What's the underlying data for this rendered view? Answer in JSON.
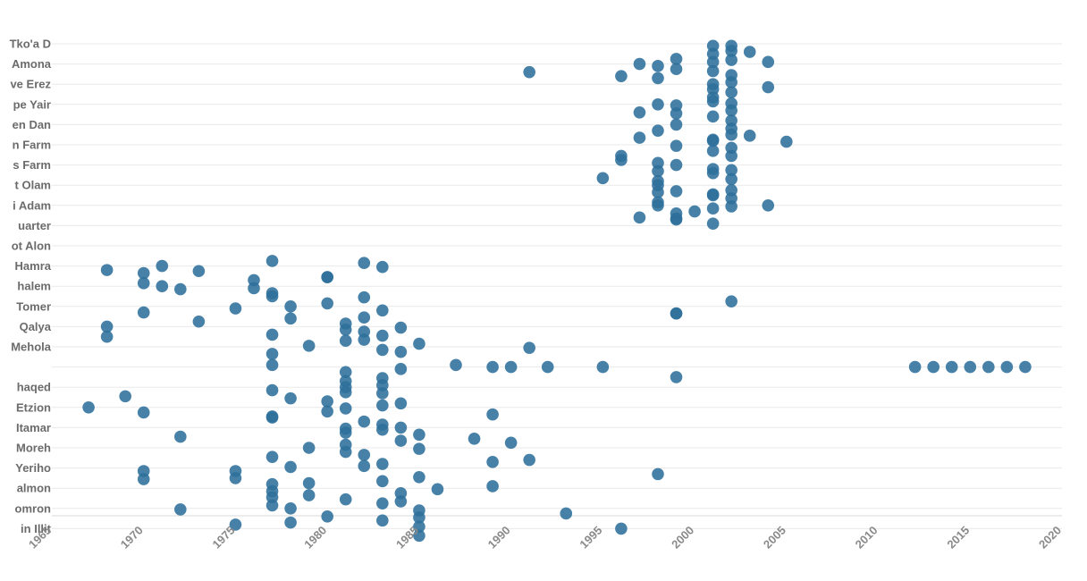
{
  "chart_data": {
    "type": "scatter",
    "xlim": [
      1965,
      2020
    ],
    "xticks": [
      "1965",
      "1970",
      "1975",
      "1980",
      "1985",
      "1990",
      "1995",
      "2000",
      "2005",
      "2010",
      "2015",
      "2020"
    ],
    "grid": true,
    "marker_color": "#2e6f9b",
    "categories": [
      "Tko'a D",
      "Amona",
      "ve Erez",
      "pe Yair",
      "en Dan",
      "n Farm",
      "s Farm",
      "t Olam",
      "i Adam",
      "uarter",
      "ot Alon",
      "Hamra",
      "halem",
      "Tomer",
      "Qalya",
      "Mehola",
      "",
      "haqed",
      "Etzion",
      "Itamar",
      "Moreh",
      "Yeriho",
      "almon",
      "omron",
      "in Illit"
    ],
    "points": [
      [
        "Tko'a D",
        2001,
        0.1
      ],
      [
        "Tko'a D",
        2002,
        0.1
      ],
      [
        "Tko'a D",
        2001,
        0.5
      ],
      [
        "Tko'a D",
        2002,
        0.35
      ],
      [
        "Tko'a D",
        2003,
        0.4
      ],
      [
        "Tko'a D",
        1999,
        0.75
      ],
      [
        "Tko'a D",
        2001,
        0.9
      ],
      [
        "Tko'a D",
        2002,
        0.8
      ],
      [
        "Amona",
        1997,
        0.0
      ],
      [
        "Amona",
        1998,
        0.1
      ],
      [
        "Amona",
        1999,
        0.25
      ],
      [
        "Amona",
        2004,
        -0.1
      ],
      [
        "Amona",
        2001,
        0.35
      ],
      [
        "ve Erez",
        1991,
        -0.6
      ],
      [
        "ve Erez",
        1996,
        -0.4
      ],
      [
        "ve Erez",
        1998,
        -0.3
      ],
      [
        "ve Erez",
        2002,
        -0.45
      ],
      [
        "ve Erez",
        2002,
        -0.1
      ],
      [
        "ve Erez",
        2001,
        0.0
      ],
      [
        "ve Erez",
        2004,
        0.15
      ],
      [
        "ve Erez",
        2001,
        0.25
      ],
      [
        "ve Erez",
        2002,
        0.4
      ],
      [
        "ve Erez",
        2001,
        0.65
      ],
      [
        "pe Yair",
        2001,
        -0.15
      ],
      [
        "pe Yair",
        2002,
        -0.05
      ],
      [
        "pe Yair",
        1998,
        0.0
      ],
      [
        "pe Yair",
        1999,
        0.05
      ],
      [
        "pe Yair",
        1997,
        0.4
      ],
      [
        "pe Yair",
        1999,
        0.45
      ],
      [
        "pe Yair",
        2002,
        0.3
      ],
      [
        "pe Yair",
        2001,
        0.6
      ],
      [
        "en Dan",
        2002,
        -0.2
      ],
      [
        "en Dan",
        1999,
        0.0
      ],
      [
        "en Dan",
        1998,
        0.3
      ],
      [
        "en Dan",
        2002,
        0.2
      ],
      [
        "en Dan",
        2002,
        0.5
      ],
      [
        "en Dan",
        2003,
        0.55
      ],
      [
        "en Dan",
        1997,
        0.65
      ],
      [
        "en Dan",
        2001,
        0.75
      ],
      [
        "n Farm",
        1999,
        0.05
      ],
      [
        "n Farm",
        2005,
        -0.15
      ],
      [
        "n Farm",
        2001,
        -0.2
      ],
      [
        "n Farm",
        2002,
        0.15
      ],
      [
        "n Farm",
        2001,
        0.3
      ],
      [
        "n Farm",
        2002,
        0.55
      ],
      [
        "n Farm",
        1996,
        0.55
      ],
      [
        "s Farm",
        1996,
        -0.25
      ],
      [
        "s Farm",
        1998,
        -0.1
      ],
      [
        "s Farm",
        1999,
        0.0
      ],
      [
        "s Farm",
        2001,
        0.2
      ],
      [
        "s Farm",
        1998,
        0.3
      ],
      [
        "s Farm",
        2002,
        0.25
      ],
      [
        "s Farm",
        2002,
        0.7
      ],
      [
        "s Farm",
        2001,
        0.4
      ],
      [
        "t Olam",
        1995,
        -0.35
      ],
      [
        "t Olam",
        1998,
        -0.2
      ],
      [
        "t Olam",
        1998,
        0.0
      ],
      [
        "t Olam",
        1999,
        0.3
      ],
      [
        "t Olam",
        1998,
        0.35
      ],
      [
        "t Olam",
        2001,
        0.45
      ],
      [
        "t Olam",
        2002,
        0.25
      ],
      [
        "i Adam",
        1998,
        -0.15
      ],
      [
        "i Adam",
        1998,
        0.0
      ],
      [
        "i Adam",
        2001,
        -0.5
      ],
      [
        "i Adam",
        2002,
        -0.35
      ],
      [
        "i Adam",
        2004,
        0.0
      ],
      [
        "i Adam",
        2002,
        0.05
      ],
      [
        "i Adam",
        2001,
        0.15
      ],
      [
        "i Adam",
        2000,
        0.3
      ],
      [
        "i Adam",
        1999,
        0.4
      ],
      [
        "i Adam",
        1999,
        0.65
      ],
      [
        "uarter",
        1997,
        -0.4
      ],
      [
        "uarter",
        1999,
        -0.3
      ],
      [
        "uarter",
        2001,
        -0.1
      ],
      [
        "Hamra",
        1968,
        0.2
      ],
      [
        "Hamra",
        1970,
        0.35
      ],
      [
        "Hamra",
        1971,
        0.0
      ],
      [
        "Hamra",
        1973,
        0.25
      ],
      [
        "Hamra",
        1977,
        -0.25
      ],
      [
        "Hamra",
        1982,
        -0.15
      ],
      [
        "Hamra",
        1983,
        0.05
      ],
      [
        "Hamra",
        1980,
        0.55
      ],
      [
        "halem",
        1970,
        -0.15
      ],
      [
        "halem",
        1971,
        0.0
      ],
      [
        "halem",
        1972,
        0.15
      ],
      [
        "halem",
        1976,
        -0.3
      ],
      [
        "halem",
        1976,
        0.1
      ],
      [
        "halem",
        1977,
        0.35
      ],
      [
        "halem",
        1980,
        -0.45
      ],
      [
        "Tomer",
        1970,
        0.3
      ],
      [
        "Tomer",
        1975,
        0.1
      ],
      [
        "Tomer",
        1977,
        -0.5
      ],
      [
        "Tomer",
        1978,
        0.0
      ],
      [
        "Tomer",
        1980,
        -0.15
      ],
      [
        "Tomer",
        1982,
        -0.45
      ],
      [
        "Tomer",
        1983,
        0.2
      ],
      [
        "Tomer",
        2002,
        -0.25
      ],
      [
        "Tomer",
        1999,
        0.35
      ],
      [
        "Qalya",
        1968,
        0.0
      ],
      [
        "Qalya",
        1973,
        -0.25
      ],
      [
        "Qalya",
        1977,
        0.4
      ],
      [
        "Qalya",
        1978,
        -0.4
      ],
      [
        "Qalya",
        1981,
        -0.15
      ],
      [
        "Qalya",
        1981,
        0.15
      ],
      [
        "Qalya",
        1982,
        -0.45
      ],
      [
        "Qalya",
        1982,
        0.25
      ],
      [
        "Qalya",
        1983,
        0.45
      ],
      [
        "Qalya",
        1984,
        0.05
      ],
      [
        "Qalya",
        1999,
        -0.65
      ],
      [
        "Mehola",
        1968,
        -0.5
      ],
      [
        "Mehola",
        1977,
        0.35
      ],
      [
        "Mehola",
        1979,
        -0.05
      ],
      [
        "Mehola",
        1981,
        -0.3
      ],
      [
        "Mehola",
        1982,
        -0.35
      ],
      [
        "Mehola",
        1983,
        0.15
      ],
      [
        "Mehola",
        1984,
        0.25
      ],
      [
        "Mehola",
        1985,
        -0.15
      ],
      [
        "Mehola",
        1991,
        0.05
      ],
      [
        "",
        1977,
        -0.1
      ],
      [
        "",
        1981,
        0.25
      ],
      [
        "",
        1983,
        0.55
      ],
      [
        "",
        1984,
        0.1
      ],
      [
        "",
        1987,
        -0.1
      ],
      [
        "",
        1989,
        0.0
      ],
      [
        "",
        1990,
        0.0
      ],
      [
        "",
        1992,
        0.0
      ],
      [
        "",
        1995,
        0.0
      ],
      [
        "",
        1999,
        0.5
      ],
      [
        "",
        2012,
        0.0
      ],
      [
        "",
        2013,
        0.0
      ],
      [
        "",
        2014,
        0.0
      ],
      [
        "",
        2015,
        0.0
      ],
      [
        "",
        2016,
        0.0
      ],
      [
        "",
        2017,
        0.0
      ],
      [
        "",
        2018,
        0.0
      ],
      [
        "haqed",
        1981,
        -0.3
      ],
      [
        "haqed",
        1981,
        0.0
      ],
      [
        "haqed",
        1983,
        -0.1
      ],
      [
        "haqed",
        1983,
        0.3
      ],
      [
        "haqed",
        1977,
        0.15
      ],
      [
        "haqed",
        1978,
        0.55
      ],
      [
        "haqed",
        1969,
        0.45
      ],
      [
        "haqed",
        1981,
        0.25
      ],
      [
        "Etzion",
        1967,
        0.0
      ],
      [
        "Etzion",
        1970,
        0.25
      ],
      [
        "Etzion",
        1980,
        -0.3
      ],
      [
        "Etzion",
        1980,
        0.2
      ],
      [
        "Etzion",
        1981,
        0.05
      ],
      [
        "Etzion",
        1983,
        -0.1
      ],
      [
        "Etzion",
        1984,
        -0.2
      ],
      [
        "Etzion",
        1989,
        0.35
      ],
      [
        "Etzion",
        1977,
        0.45
      ],
      [
        "Itamar",
        1977,
        -0.5
      ],
      [
        "Itamar",
        1981,
        0.05
      ],
      [
        "Itamar",
        1982,
        -0.3
      ],
      [
        "Itamar",
        1983,
        0.1
      ],
      [
        "Itamar",
        1983,
        -0.15
      ],
      [
        "Itamar",
        1984,
        0.0
      ],
      [
        "Itamar",
        1981,
        0.25
      ],
      [
        "Itamar",
        1985,
        0.35
      ],
      [
        "Itamar",
        1972,
        0.45
      ],
      [
        "Itamar",
        1984,
        0.65
      ],
      [
        "Itamar",
        1988,
        0.55
      ],
      [
        "Moreh",
        1979,
        0.0
      ],
      [
        "Moreh",
        1977,
        0.45
      ],
      [
        "Moreh",
        1981,
        -0.15
      ],
      [
        "Moreh",
        1981,
        0.2
      ],
      [
        "Moreh",
        1982,
        0.35
      ],
      [
        "Moreh",
        1985,
        0.05
      ],
      [
        "Moreh",
        1990,
        -0.25
      ],
      [
        "Yeriho",
        1970,
        0.15
      ],
      [
        "Yeriho",
        1975,
        0.15
      ],
      [
        "Yeriho",
        1978,
        -0.05
      ],
      [
        "Yeriho",
        1982,
        -0.1
      ],
      [
        "Yeriho",
        1983,
        -0.2
      ],
      [
        "Yeriho",
        1989,
        -0.3
      ],
      [
        "Yeriho",
        1991,
        -0.4
      ],
      [
        "Yeriho",
        1998,
        0.3
      ],
      [
        "Yeriho",
        1985,
        0.45
      ],
      [
        "Yeriho",
        1975,
        0.5
      ],
      [
        "almon",
        1970,
        -0.45
      ],
      [
        "almon",
        1977,
        -0.2
      ],
      [
        "almon",
        1977,
        0.15
      ],
      [
        "almon",
        1979,
        -0.25
      ],
      [
        "almon",
        1979,
        0.35
      ],
      [
        "almon",
        1983,
        -0.35
      ],
      [
        "almon",
        1984,
        0.25
      ],
      [
        "almon",
        1986,
        0.05
      ],
      [
        "almon",
        1989,
        -0.1
      ],
      [
        "almon",
        1981,
        0.55
      ],
      [
        "almon",
        1977,
        0.45
      ],
      [
        "omron",
        1972,
        0.05
      ],
      [
        "omron",
        1977,
        -0.15
      ],
      [
        "omron",
        1978,
        0.0
      ],
      [
        "omron",
        1980,
        0.4
      ],
      [
        "omron",
        1983,
        -0.25
      ],
      [
        "omron",
        1984,
        -0.35
      ],
      [
        "omron",
        1985,
        0.1
      ],
      [
        "omron",
        1985,
        0.45
      ],
      [
        "omron",
        1993,
        0.25
      ],
      [
        "in Illit",
        1975,
        -0.2
      ],
      [
        "in Illit",
        1978,
        -0.3
      ],
      [
        "in Illit",
        1983,
        -0.4
      ],
      [
        "in Illit",
        1985,
        -0.1
      ],
      [
        "in Illit",
        1996,
        0.0
      ],
      [
        "in Illit",
        1985,
        0.35
      ]
    ]
  }
}
